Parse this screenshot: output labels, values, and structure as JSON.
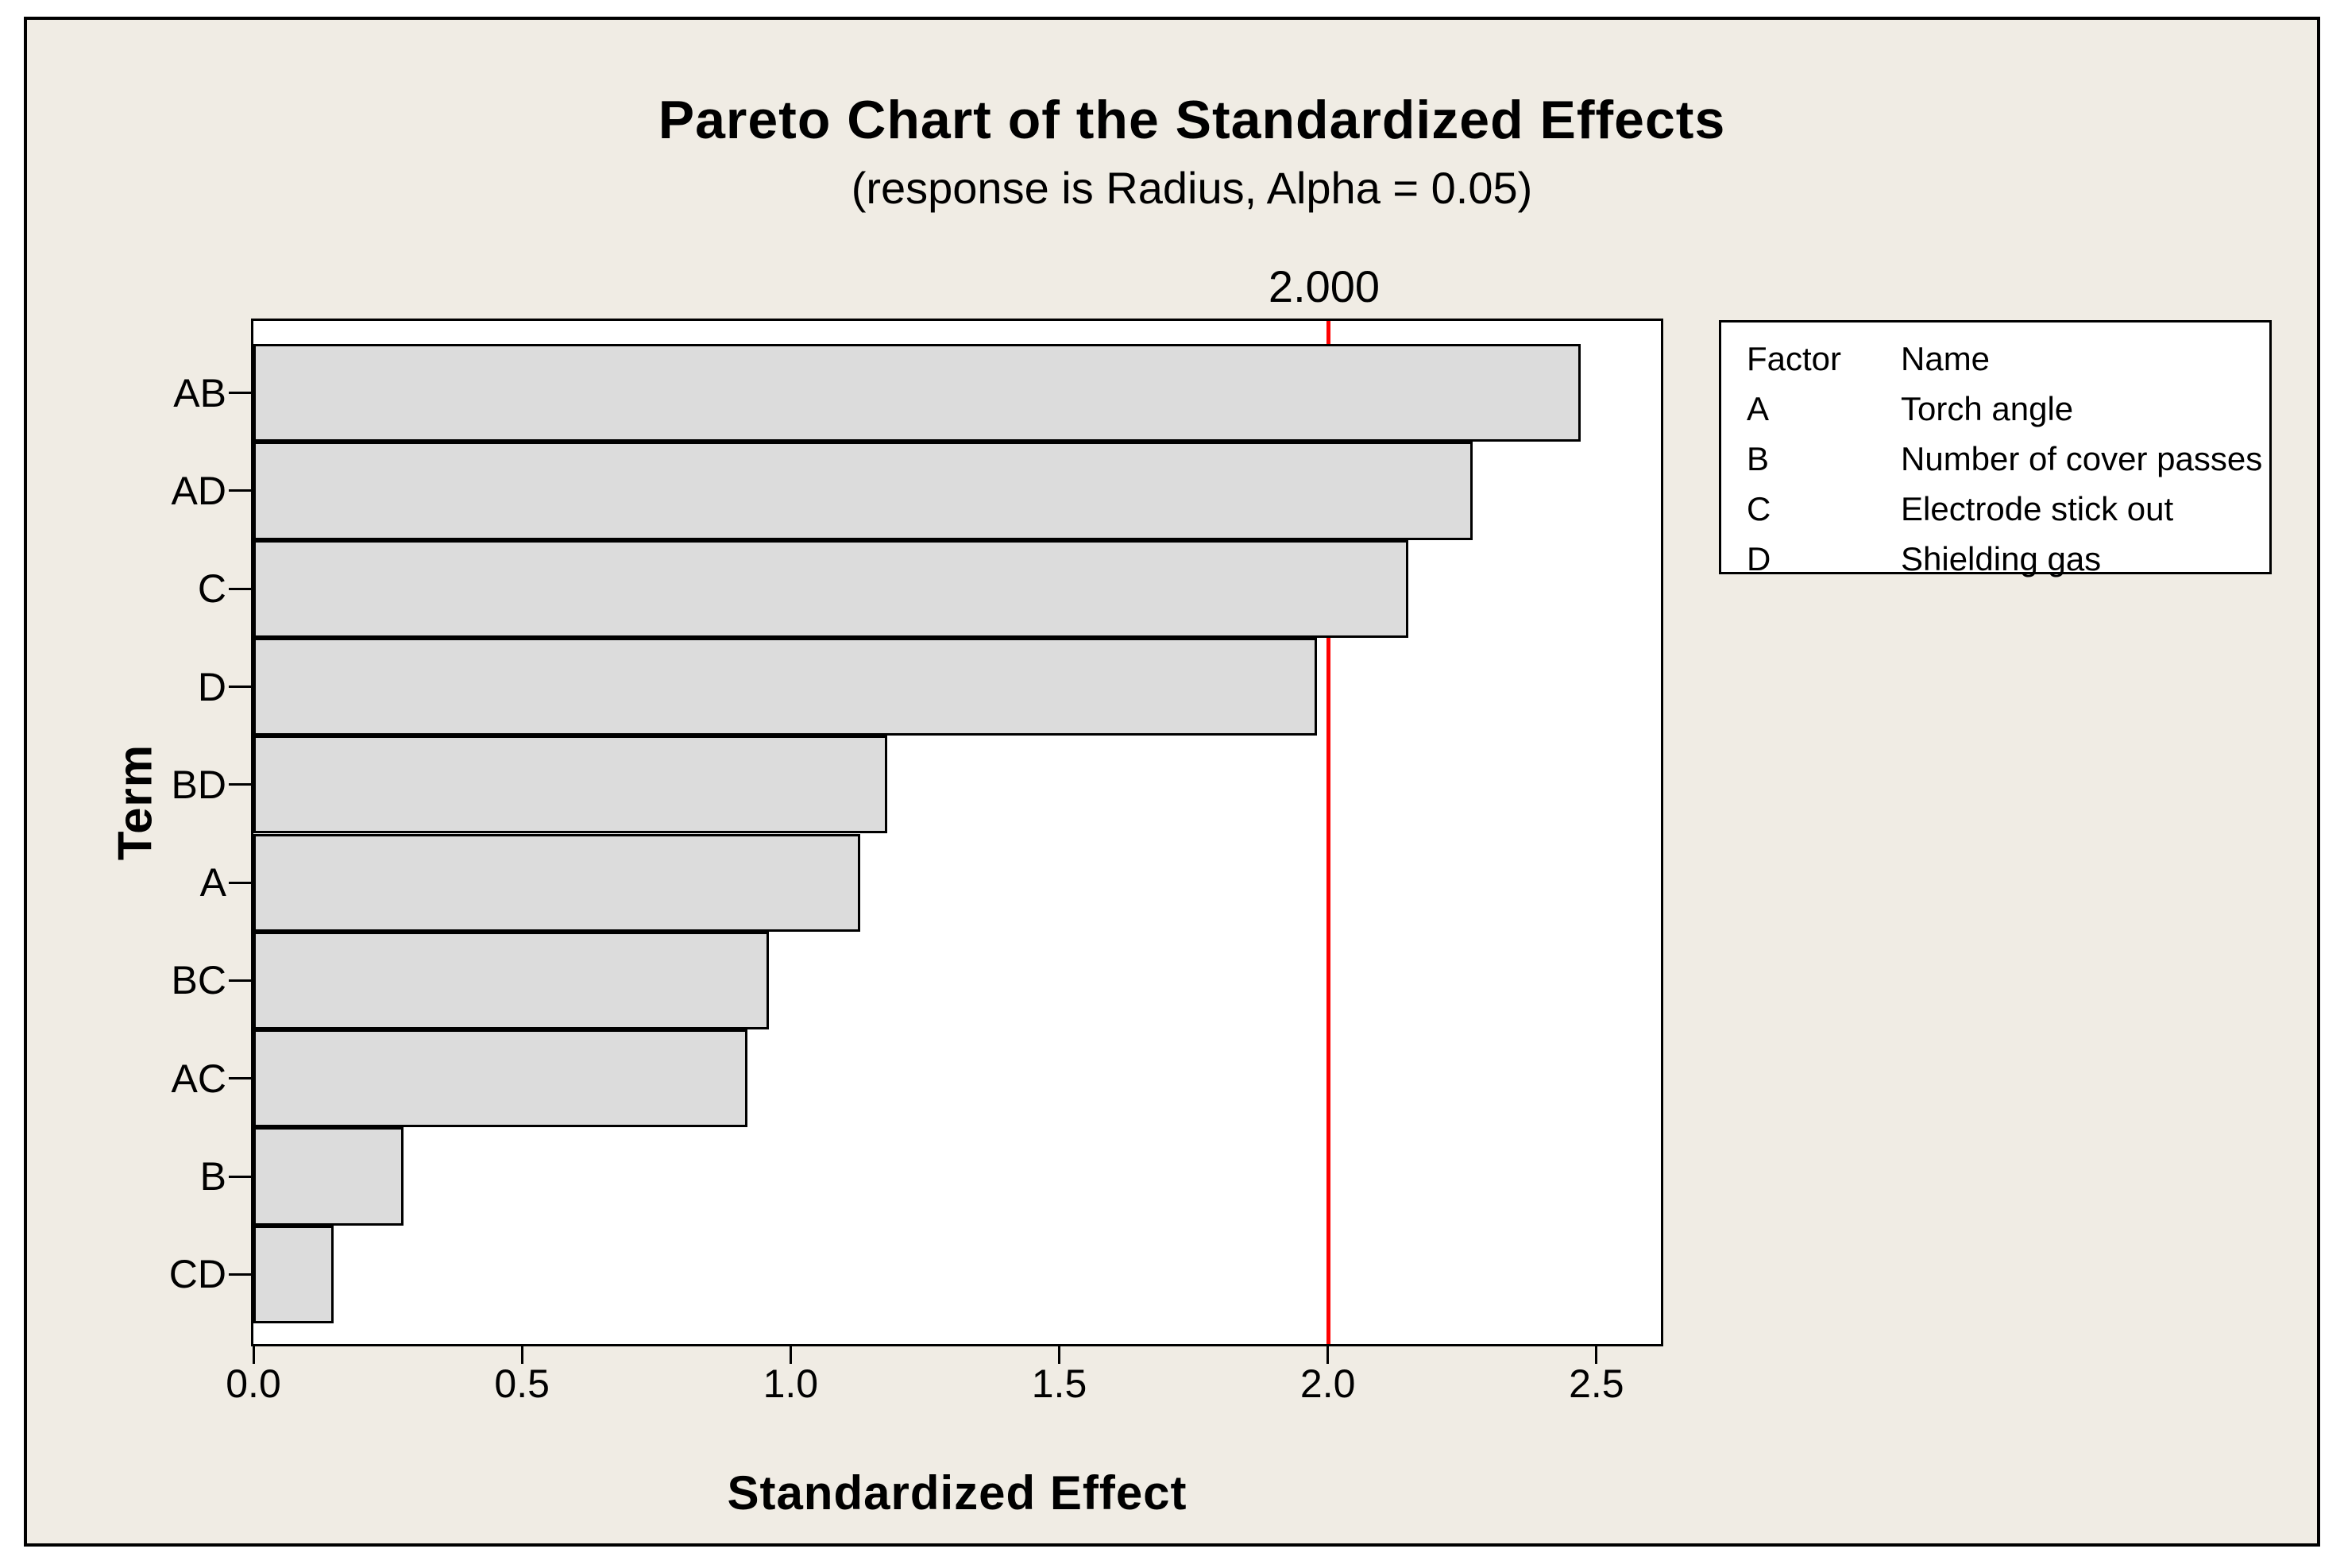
{
  "window": {
    "canvas_background": "#f0ece4",
    "plot_background": "#ffffff",
    "frame_color": "#000000"
  },
  "chart_data": {
    "type": "bar",
    "orientation": "horizontal",
    "title": "Pareto Chart of the Standardized Effects",
    "subtitle": "(response is Radius, Alpha = 0.05)",
    "categories": [
      "AB",
      "AD",
      "C",
      "D",
      "BD",
      "A",
      "BC",
      "AC",
      "B",
      "CD"
    ],
    "values": [
      2.47,
      2.27,
      2.15,
      1.98,
      1.18,
      1.13,
      0.96,
      0.92,
      0.28,
      0.15
    ],
    "xlabel": "Standardized Effect",
    "ylabel": "Term",
    "x_ticks": [
      0.0,
      0.5,
      1.0,
      1.5,
      2.0,
      2.5
    ],
    "x_tick_labels": [
      "0.0",
      "0.5",
      "1.0",
      "1.5",
      "2.0",
      "2.5"
    ],
    "xlim": [
      0,
      2.62
    ],
    "grid": false,
    "bar_fill": "#dcdcdc",
    "bar_border": "#000000",
    "reference_line": {
      "value": 2.0,
      "label": "2.000",
      "color": "#ff0000"
    }
  },
  "legend": {
    "headers": [
      "Factor",
      "Name"
    ],
    "rows": [
      [
        "A",
        "Torch angle"
      ],
      [
        "B",
        "Number of cover passes"
      ],
      [
        "C",
        "Electrode stick out"
      ],
      [
        "D",
        "Shielding gas"
      ]
    ]
  }
}
